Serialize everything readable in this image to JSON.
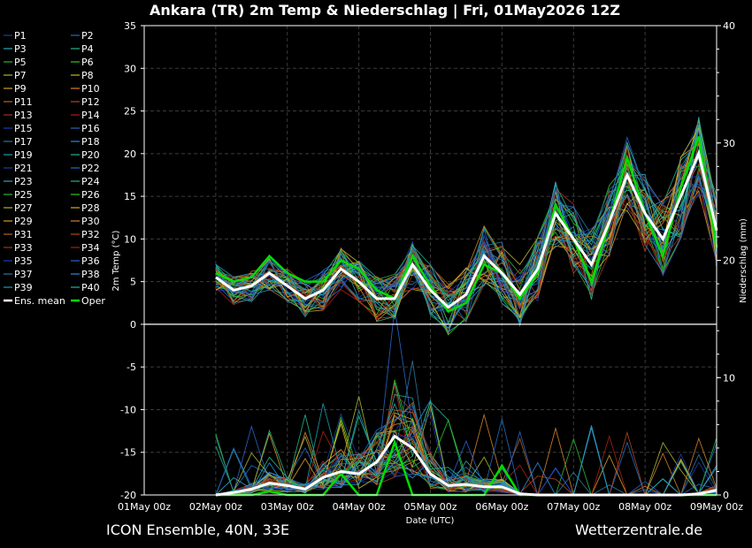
{
  "title": "Ankara  (TR)  2m Temp & Niederschlag | Fri, 01May2026 12Z",
  "footer": {
    "left": "ICON Ensemble, 40N, 33E",
    "right": "Wetterzentrale.de"
  },
  "colors": {
    "background": "#000000",
    "grid": "#3c3c3c",
    "mean": "#ffffff",
    "oper": "#00dd00",
    "members": [
      "#1e3ca0",
      "#1e6ec8",
      "#2aa8b4",
      "#22b48a",
      "#2cb43a",
      "#30c820",
      "#aab432",
      "#c8b428",
      "#d2a028",
      "#d2822a",
      "#b4641e",
      "#b4461e",
      "#a03228",
      "#aa2014",
      "#1e3cb4",
      "#2a64c8",
      "#2a78a0",
      "#2a8cd2",
      "#1e9caa",
      "#22b496"
    ]
  },
  "chart_data": {
    "type": "line",
    "title": "Ankara  (TR)  2m Temp & Niederschlag | Fri, 01May2026 12Z",
    "xlabel": "Date (UTC)",
    "ylabel_left": "2m Temp (°C)",
    "ylabel_right": "Niederschlag (mm)",
    "x_ticks": [
      "01May 00z",
      "02May 00z",
      "03May 00z",
      "04May 00z",
      "05May 00z",
      "06May 00z",
      "07May 00z",
      "08May 00z",
      "09May 00z"
    ],
    "y_left_ticks": [
      "35",
      "30",
      "25",
      "20",
      "15",
      "10",
      "5",
      "0",
      "-5",
      "-10",
      "-15",
      "-20"
    ],
    "y_left_range": [
      -20,
      35
    ],
    "y_right_ticks": [
      "40",
      "30",
      "20",
      "10",
      "0"
    ],
    "y_right_range": [
      0,
      40
    ],
    "grid": true,
    "legend_position": "left",
    "legend": [
      "P1",
      "P2",
      "P3",
      "P4",
      "P5",
      "P6",
      "P7",
      "P8",
      "P9",
      "P10",
      "P11",
      "P12",
      "P13",
      "P14",
      "P15",
      "P16",
      "P17",
      "P18",
      "P19",
      "P20",
      "P21",
      "P22",
      "P23",
      "P24",
      "P25",
      "P26",
      "P27",
      "P28",
      "P29",
      "P30",
      "P31",
      "P32",
      "P33",
      "P34",
      "P35",
      "P36",
      "P37",
      "P38",
      "P39",
      "P40",
      "Ens. mean",
      "Oper"
    ],
    "time_hours": [
      24,
      30,
      36,
      42,
      48,
      54,
      60,
      66,
      72,
      78,
      84,
      90,
      96,
      102,
      108,
      114,
      120,
      126,
      132,
      138,
      144,
      150,
      156,
      162,
      168,
      174,
      180,
      186,
      192
    ],
    "temp_mean": [
      5.5,
      4.0,
      4.5,
      6.0,
      4.5,
      3.0,
      4.0,
      6.5,
      5.0,
      3.0,
      3.0,
      7.0,
      4.0,
      2.0,
      3.5,
      8.0,
      6.0,
      3.5,
      6.5,
      13.0,
      10.0,
      7.0,
      12.0,
      17.5,
      13.0,
      10.0,
      15.0,
      20.0,
      11.0
    ],
    "temp_oper": [
      6.0,
      5.0,
      5.5,
      8.0,
      6.0,
      5.0,
      5.0,
      7.5,
      6.5,
      4.0,
      3.0,
      8.0,
      4.5,
      1.5,
      2.5,
      7.0,
      6.0,
      3.0,
      6.0,
      14.0,
      10.0,
      5.0,
      12.0,
      19.5,
      13.0,
      8.0,
      16.0,
      22.0,
      9.0
    ],
    "precip_mean": [
      0.0,
      0.2,
      0.5,
      1.0,
      0.8,
      0.5,
      1.5,
      2.0,
      1.8,
      2.8,
      5.0,
      4.0,
      1.8,
      0.8,
      0.9,
      0.7,
      0.7,
      0.1,
      0.0,
      0.0,
      0.0,
      0.0,
      0.0,
      0.0,
      0.0,
      0.0,
      0.0,
      0.1,
      0.4
    ],
    "precip_oper": [
      0.0,
      0.0,
      0.0,
      0.3,
      0.0,
      0.0,
      0.0,
      1.8,
      0.0,
      0.0,
      4.5,
      0.0,
      0.0,
      0.0,
      0.0,
      0.0,
      2.5,
      0.0,
      0.0,
      0.0,
      0.0,
      0.0,
      0.0,
      0.0,
      0.0,
      0.0,
      0.0,
      0.0,
      0.0
    ]
  }
}
